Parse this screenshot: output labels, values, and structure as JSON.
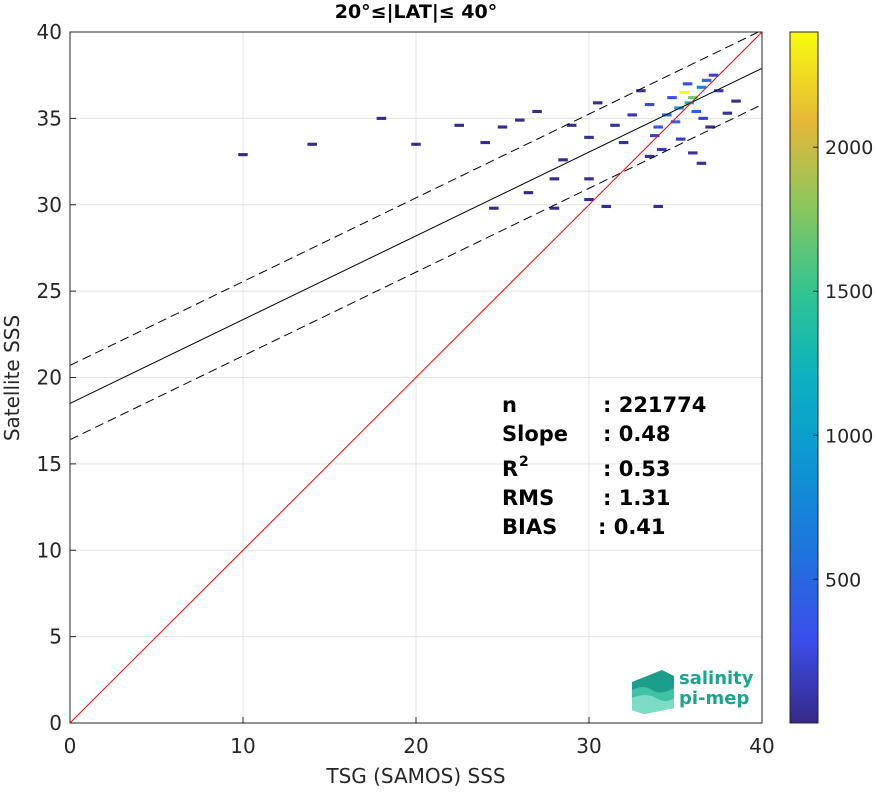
{
  "chart_data": {
    "type": "scatter",
    "title": "20°≤|LAT|≤ 40°",
    "xlabel": "TSG (SAMOS) SSS",
    "ylabel": "Satellite SSS",
    "xlim": [
      0,
      40
    ],
    "ylim": [
      0,
      40
    ],
    "xticks": [
      0,
      10,
      20,
      30,
      40
    ],
    "yticks": [
      0,
      5,
      10,
      15,
      20,
      25,
      30,
      35,
      40
    ],
    "grid": true,
    "one_to_one_line": {
      "color": "#ff0000",
      "x": [
        0,
        40
      ],
      "y": [
        0,
        40
      ]
    },
    "regression_line": {
      "color": "#000000",
      "x": [
        0,
        40
      ],
      "y": [
        18.5,
        37.9
      ]
    },
    "confidence_band_upper": {
      "style": "dashed",
      "x": [
        0,
        40
      ],
      "y": [
        20.7,
        40.1
      ]
    },
    "confidence_band_lower": {
      "style": "dashed",
      "x": [
        0,
        40
      ],
      "y": [
        16.4,
        35.8
      ]
    },
    "density_cells": [
      [
        35.5,
        36.5,
        2400
      ],
      [
        36.0,
        36.2,
        1700
      ],
      [
        35.8,
        35.9,
        1300
      ],
      [
        35.2,
        35.6,
        900
      ],
      [
        36.5,
        36.8,
        800
      ],
      [
        34.5,
        35.2,
        600
      ],
      [
        36.8,
        37.2,
        500
      ],
      [
        35.0,
        34.8,
        450
      ],
      [
        34.0,
        34.5,
        350
      ],
      [
        36.2,
        35.4,
        400
      ],
      [
        33.5,
        35.8,
        250
      ],
      [
        35.7,
        37.0,
        300
      ],
      [
        34.8,
        36.2,
        280
      ],
      [
        37.2,
        37.5,
        200
      ],
      [
        33.8,
        34.0,
        180
      ],
      [
        36.6,
        35.0,
        200
      ],
      [
        32.5,
        35.2,
        120
      ],
      [
        35.3,
        33.8,
        150
      ],
      [
        34.2,
        33.2,
        110
      ],
      [
        37.5,
        36.6,
        90
      ],
      [
        33.0,
        36.6,
        80
      ],
      [
        31.5,
        34.6,
        60
      ],
      [
        32.0,
        33.6,
        60
      ],
      [
        36.0,
        33.0,
        70
      ],
      [
        30.5,
        35.9,
        40
      ],
      [
        30.0,
        33.9,
        30
      ],
      [
        29.0,
        34.6,
        25
      ],
      [
        38.0,
        35.3,
        40
      ],
      [
        38.5,
        36.0,
        30
      ],
      [
        28.5,
        32.6,
        20
      ],
      [
        33.5,
        32.8,
        40
      ],
      [
        26.0,
        34.9,
        15
      ],
      [
        27.0,
        35.4,
        15
      ],
      [
        25.0,
        34.5,
        12
      ],
      [
        24.0,
        33.6,
        10
      ],
      [
        22.5,
        34.6,
        10
      ],
      [
        20.0,
        33.5,
        8
      ],
      [
        18.0,
        35.0,
        8
      ],
      [
        14.0,
        33.5,
        6
      ],
      [
        10.0,
        32.9,
        5
      ],
      [
        30.0,
        31.5,
        20
      ],
      [
        28.0,
        31.5,
        15
      ],
      [
        26.5,
        30.7,
        12
      ],
      [
        24.5,
        29.8,
        10
      ],
      [
        31.0,
        29.9,
        20
      ],
      [
        30.0,
        30.3,
        15
      ],
      [
        34.0,
        29.9,
        15
      ],
      [
        28.0,
        29.8,
        12
      ],
      [
        37.0,
        34.5,
        50
      ],
      [
        36.5,
        32.4,
        40
      ]
    ],
    "colorbar": {
      "ticks": [
        500,
        1000,
        1500,
        2000
      ],
      "min": 1,
      "max": 2400,
      "colormap": "parula"
    },
    "annotations": [
      {
        "label": "n",
        "value": ": 221774"
      },
      {
        "label": "Slope",
        "value": ": 0.48"
      },
      {
        "label": "R",
        "sup": "2",
        "value": ": 0.53"
      },
      {
        "label": "RMS",
        "value": ": 1.31"
      },
      {
        "label": "BIAS",
        "value": ": 0.41"
      }
    ],
    "logo": {
      "line1": "salinity",
      "line2": "pi-mep"
    }
  }
}
